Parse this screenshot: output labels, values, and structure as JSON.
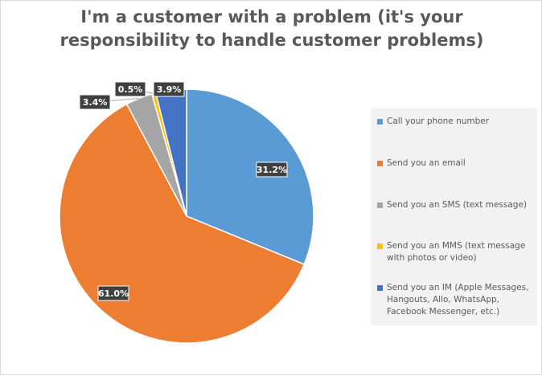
{
  "chart_data": {
    "type": "pie",
    "title": [
      "I'm a customer with a problem (it's your",
      "responsibility to handle customer problems)"
    ],
    "categories": [
      "Call your phone number",
      "Send you an email",
      "Send you an SMS (text message)",
      "Send you an MMS (text message with photos or video)",
      "Send you an IM (Apple Messages, Hangouts, Allo, WhatsApp, Facebook Messenger, etc.)"
    ],
    "values": [
      31.2,
      61.0,
      3.4,
      0.5,
      3.9
    ],
    "data_labels": [
      "31.2%",
      "61.0%",
      "3.4%",
      "0.5%",
      "3.9%"
    ],
    "colors": [
      "#5b9bd5",
      "#ed7d31",
      "#a5a5a5",
      "#ffc000",
      "#4472c4"
    ],
    "legend_position": "right"
  }
}
